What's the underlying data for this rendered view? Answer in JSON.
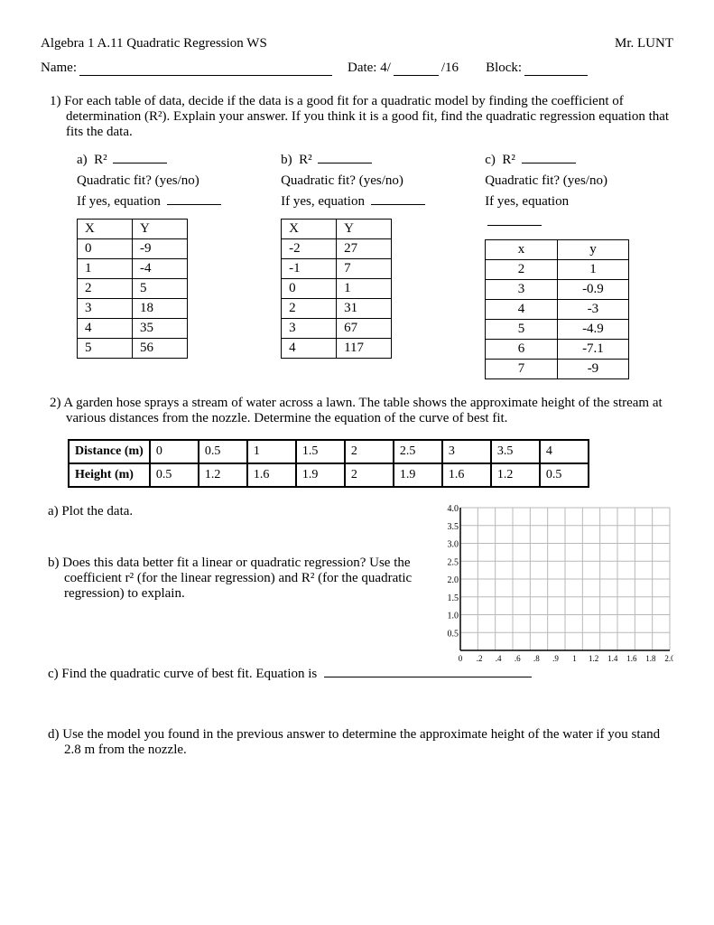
{
  "header": {
    "title": "Algebra 1 A.11 Quadratic Regression WS",
    "teacher": "Mr. LUNT",
    "name_label": "Name:",
    "date_label": "Date: 4/",
    "date_suffix": "/16",
    "block_label": "Block:"
  },
  "q1": {
    "prompt": "1)  For each table of data, decide if the data is a good fit for a quadratic model by finding the coefficient of determination (R²).  Explain your answer.  If you think it is a good fit, find the quadratic regression equation that fits the data.",
    "r2_label": "R²",
    "fit_label": "Quadratic fit? (yes/no)",
    "eq_label": "If yes, equation",
    "a_label": "a)",
    "b_label": "b)",
    "c_label": "c)",
    "table_a": {
      "hx": "X",
      "hy": "Y",
      "rows": [
        [
          "0",
          "-9"
        ],
        [
          "1",
          "-4"
        ],
        [
          "2",
          "5"
        ],
        [
          "3",
          "18"
        ],
        [
          "4",
          "35"
        ],
        [
          "5",
          "56"
        ]
      ]
    },
    "table_b": {
      "hx": "X",
      "hy": "Y",
      "rows": [
        [
          "-2",
          "27"
        ],
        [
          "-1",
          "7"
        ],
        [
          "0",
          "1"
        ],
        [
          "2",
          "31"
        ],
        [
          "3",
          "67"
        ],
        [
          "4",
          "117"
        ]
      ]
    },
    "table_c": {
      "hx": "x",
      "hy": "y",
      "rows": [
        [
          "2",
          "1"
        ],
        [
          "3",
          "-0.9"
        ],
        [
          "4",
          "-3"
        ],
        [
          "5",
          "-4.9"
        ],
        [
          "6",
          "-7.1"
        ],
        [
          "7",
          "-9"
        ]
      ]
    }
  },
  "q2": {
    "prompt": "2)  A garden hose sprays a stream of water across a lawn. The table shows the approximate height of the stream at various distances from the nozzle. Determine the equation of the curve of best fit.",
    "row_h1": "Distance (m)",
    "row_h2": "Height (m)",
    "dist": [
      "0",
      "0.5",
      "1",
      "1.5",
      "2",
      "2.5",
      "3",
      "3.5",
      "4"
    ],
    "height": [
      "0.5",
      "1.2",
      "1.6",
      "1.9",
      "2",
      "1.9",
      "1.6",
      "1.2",
      "0.5"
    ],
    "a": "a)  Plot the data.",
    "b": "b)  Does this data better fit a linear or quadratic regression?  Use the coefficient r² (for the linear regression) and R² (for the quadratic regression) to explain.",
    "c": "c)  Find the quadratic curve of best fit.  Equation is",
    "d": "d)  Use the model you found in the previous answer to determine the approximate height of the water if you stand 2.8 m from the nozzle.",
    "grid": {
      "y_labels": [
        "4.0",
        "3.5",
        "3.0",
        "2.5",
        "2.0",
        "1.5",
        "1.0",
        "0.5"
      ],
      "x_labels": [
        "0",
        ".2",
        ".4",
        ".6",
        ".8",
        ".9",
        "1",
        "1.2",
        "1.4",
        "1.6",
        "1.8",
        "2.0"
      ],
      "grid_color": "#b8b8b8",
      "axis_color": "#000000",
      "bg_color": "#ffffff"
    }
  }
}
